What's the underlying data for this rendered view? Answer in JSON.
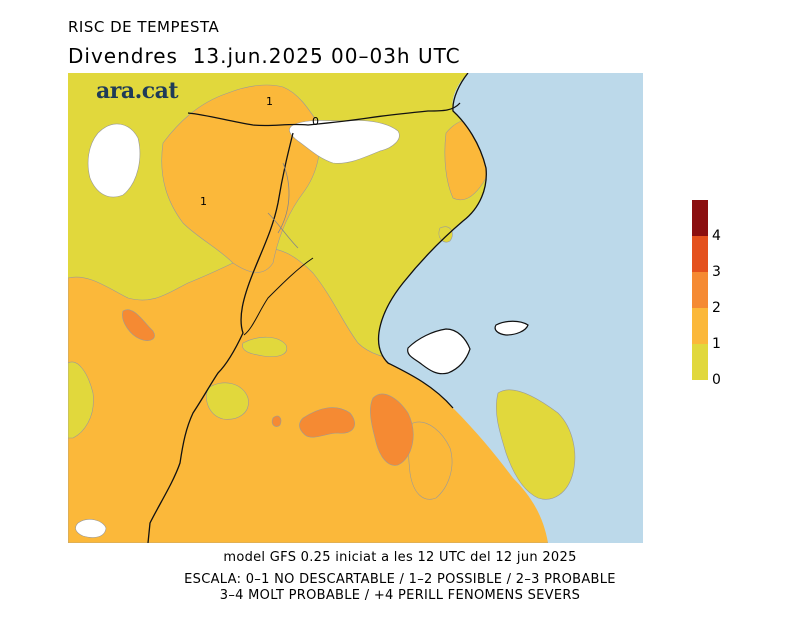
{
  "header": {
    "title": "RISC DE TEMPESTA",
    "subtitle": "Divendres  13.jun.2025 00–03h UTC"
  },
  "logo": {
    "text": "ara.cat"
  },
  "map": {
    "contour_labels": [
      "1",
      "0",
      "1"
    ],
    "colors": {
      "sea": "#bcd9ea",
      "level_0_1": "#e1d83c",
      "level_1_2": "#fbb83a",
      "level_2_3": "#f58a33",
      "level_3_4": "#e4511e",
      "level_4_plus": "#8b0f10",
      "no_data": "#ffffff",
      "border": "#111111",
      "region_border": "#aaaaaa"
    }
  },
  "legend": {
    "labels": [
      "4",
      "3",
      "2",
      "1",
      "0"
    ],
    "colors": [
      "#8b0f10",
      "#e4511e",
      "#f58a33",
      "#fbb83a",
      "#e1d83c"
    ]
  },
  "footer": {
    "model_line": "model GFS 0.25 iniciat a les 12 UTC del 12 jun 2025",
    "scale_line1": "ESCALA: 0–1 NO DESCARTABLE / 1–2 POSSIBLE / 2–3 PROBABLE",
    "scale_line2": "3–4 MOLT PROBABLE / +4 PERILL FENOMENS SEVERS"
  }
}
